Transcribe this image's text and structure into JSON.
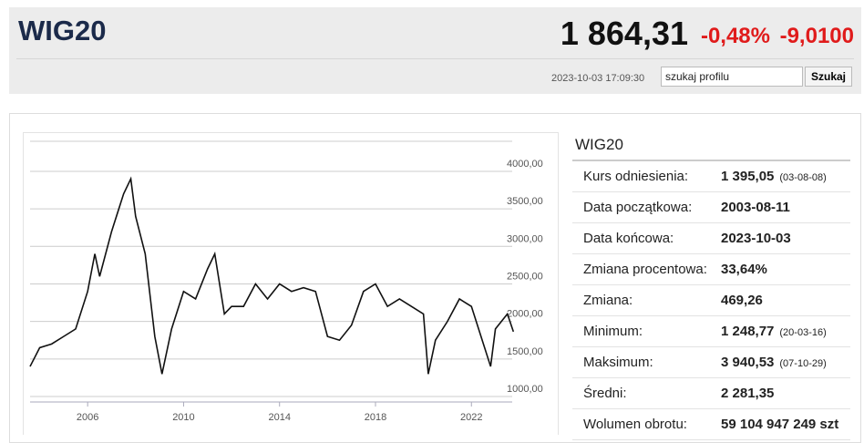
{
  "header": {
    "title": "WIG20",
    "price": "1 864,31",
    "change_pct": "-0,48%",
    "change": "-9,0100",
    "timestamp": "2023-10-03 17:09:30",
    "search_placeholder": "szukaj profilu",
    "search_button": "Szukaj"
  },
  "chart_data": {
    "type": "line",
    "color": "#111111",
    "x": [
      2003.6,
      2004,
      2004.5,
      2005,
      2005.5,
      2006,
      2006.3,
      2006.5,
      2007,
      2007.5,
      2007.8,
      2008,
      2008.4,
      2008.8,
      2009.1,
      2009.5,
      2010,
      2010.5,
      2011,
      2011.3,
      2011.7,
      2012,
      2012.5,
      2013,
      2013.5,
      2014,
      2014.5,
      2015,
      2015.5,
      2016,
      2016.5,
      2017,
      2017.5,
      2018,
      2018.5,
      2019,
      2019.5,
      2020,
      2020.2,
      2020.5,
      2021,
      2021.5,
      2022,
      2022.5,
      2022.8,
      2023,
      2023.5,
      2023.75
    ],
    "values": [
      1400,
      1650,
      1700,
      1800,
      1900,
      2400,
      2900,
      2600,
      3200,
      3700,
      3900,
      3400,
      2900,
      1800,
      1300,
      1900,
      2400,
      2300,
      2700,
      2900,
      2100,
      2200,
      2200,
      2500,
      2300,
      2500,
      2400,
      2450,
      2400,
      1800,
      1750,
      1950,
      2400,
      2500,
      2200,
      2300,
      2200,
      2100,
      1300,
      1750,
      2000,
      2300,
      2200,
      1700,
      1400,
      1900,
      2100,
      1864
    ],
    "xlim": [
      2003.6,
      2023.7
    ],
    "ylim": [
      1000,
      4400
    ],
    "xticks": [
      2006,
      2010,
      2014,
      2018,
      2022
    ],
    "yticks": [
      {
        "value": 1000,
        "label": "1000,00"
      },
      {
        "value": 1500,
        "label": "1500,00"
      },
      {
        "value": 2000,
        "label": "2000,00"
      },
      {
        "value": 2500,
        "label": "2500,00"
      },
      {
        "value": 3000,
        "label": "3000,00"
      },
      {
        "value": 3500,
        "label": "3500,00"
      },
      {
        "value": 4000,
        "label": "4000,00"
      }
    ],
    "grid": true
  },
  "stats": {
    "title": "WIG20",
    "rows": [
      {
        "label": "Kurs odniesienia:",
        "value": "1 395,05",
        "note": "(03-08-08)"
      },
      {
        "label": "Data początkowa:",
        "value": "2003-08-11"
      },
      {
        "label": "Data końcowa:",
        "value": "2023-10-03"
      },
      {
        "label": "Zmiana procentowa:",
        "value": "33,64%"
      },
      {
        "label": "Zmiana:",
        "value": "469,26"
      },
      {
        "label": "Minimum:",
        "value": "1 248,77",
        "note": "(20-03-16)"
      },
      {
        "label": "Maksimum:",
        "value": "3 940,53",
        "note": "(07-10-29)"
      },
      {
        "label": "Średni:",
        "value": "2 281,35"
      },
      {
        "label": "Wolumen obrotu:",
        "value": "59 104 947 249 szt"
      }
    ]
  }
}
